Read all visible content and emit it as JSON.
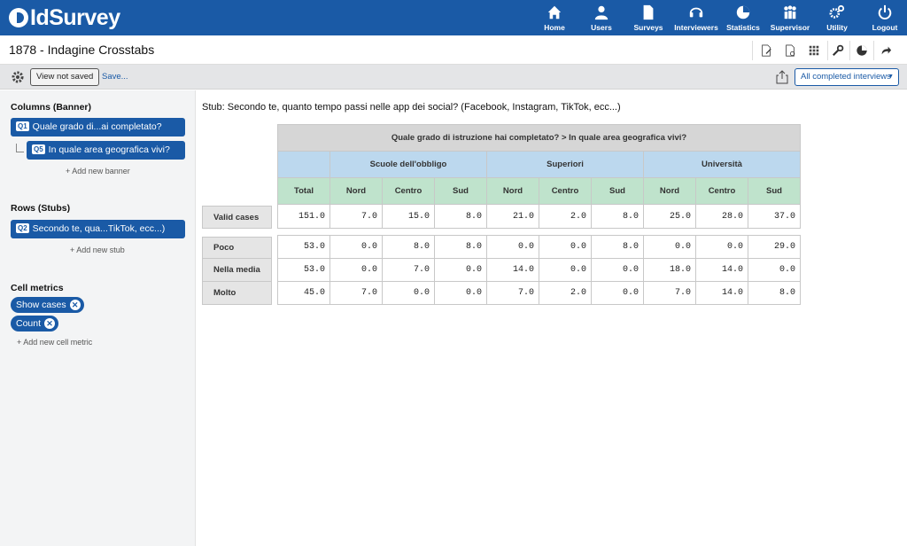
{
  "brand": {
    "name": "IdSurvey"
  },
  "nav": [
    {
      "label": "Home",
      "icon": "home-icon"
    },
    {
      "label": "Users",
      "icon": "users-icon"
    },
    {
      "label": "Surveys",
      "icon": "surveys-icon"
    },
    {
      "label": "Interviewers",
      "icon": "headset-icon"
    },
    {
      "label": "Statistics",
      "icon": "pie-chart-icon"
    },
    {
      "label": "Supervisor",
      "icon": "supervisor-icon"
    },
    {
      "label": "Utility",
      "icon": "gears-icon"
    },
    {
      "label": "Logout",
      "icon": "power-icon"
    }
  ],
  "page": {
    "title": "1878 - Indagine Crosstabs"
  },
  "toolbar": {
    "view_label": "View not saved",
    "save_label": "Save...",
    "filter_label": "All completed interviews"
  },
  "sidebar": {
    "columns_heading": "Columns (Banner)",
    "banner1": {
      "badge": "Q1",
      "label": "Quale grado di...ai completato?"
    },
    "banner2": {
      "badge": "Q5",
      "label": "In quale area geografica vivi?"
    },
    "add_banner": "+ Add new banner",
    "rows_heading": "Rows (Stubs)",
    "stub1": {
      "badge": "Q2",
      "label": "Secondo te, qua...TikTok, ecc...)"
    },
    "add_stub": "+ Add new stub",
    "metrics_heading": "Cell metrics",
    "metric1": "Show cases",
    "metric2": "Count",
    "add_metric": "+ Add new cell metric"
  },
  "main": {
    "stub_title": "Stub: Secondo te, quanto tempo passi nelle app dei social? (Facebook, Instagram, TikTok, ecc...)",
    "table": {
      "top_header": "Quale grado di istruzione hai completato? > In quale area geografica vivi?",
      "groups": [
        "Scuole dell'obbligo",
        "Superiori",
        "Università"
      ],
      "columns": [
        "Total",
        "Nord",
        "Centro",
        "Sud",
        "Nord",
        "Centro",
        "Sud",
        "Nord",
        "Centro",
        "Sud"
      ],
      "valid_label": "Valid cases",
      "valid_values": [
        "151.0",
        "7.0",
        "15.0",
        "8.0",
        "21.0",
        "2.0",
        "8.0",
        "25.0",
        "28.0",
        "37.0"
      ],
      "rows": [
        {
          "label": "Poco",
          "values": [
            "53.0",
            "0.0",
            "8.0",
            "8.0",
            "0.0",
            "0.0",
            "8.0",
            "0.0",
            "0.0",
            "29.0"
          ]
        },
        {
          "label": "Nella media",
          "values": [
            "53.0",
            "0.0",
            "7.0",
            "0.0",
            "14.0",
            "0.0",
            "0.0",
            "18.0",
            "14.0",
            "0.0"
          ]
        },
        {
          "label": "Molto",
          "values": [
            "45.0",
            "7.0",
            "0.0",
            "0.0",
            "7.0",
            "2.0",
            "0.0",
            "7.0",
            "14.0",
            "8.0"
          ]
        }
      ]
    }
  }
}
